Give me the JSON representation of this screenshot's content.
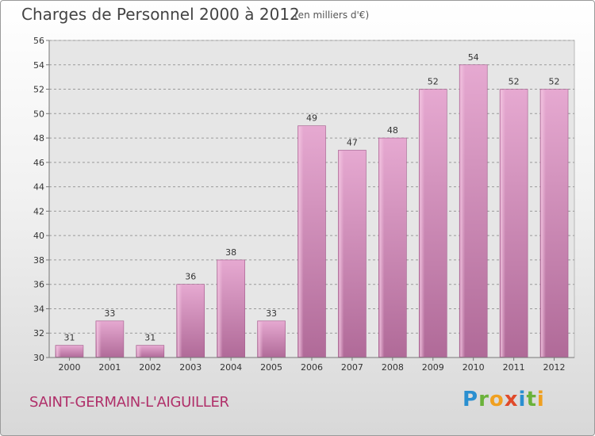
{
  "title": "Charges de Personnel 2000 à 2012",
  "subtitle": "(en milliers d'€)",
  "city": "SAINT-GERMAIN-L'AIGUILLER",
  "logo": "Proxiti",
  "logo_letters": [
    "P",
    "r",
    "o",
    "x",
    "i",
    "t",
    "i"
  ],
  "chart_data": {
    "type": "bar",
    "title": "Charges de Personnel 2000 à 2012",
    "subtitle": "(en milliers d'€)",
    "categories": [
      "2000",
      "2001",
      "2002",
      "2003",
      "2004",
      "2005",
      "2006",
      "2007",
      "2008",
      "2009",
      "2010",
      "2011",
      "2012"
    ],
    "values": [
      31,
      33,
      31,
      36,
      38,
      33,
      49,
      47,
      48,
      52,
      54,
      52,
      52
    ],
    "ylim": [
      30,
      56
    ],
    "yticks": [
      30,
      32,
      34,
      36,
      38,
      40,
      42,
      44,
      46,
      48,
      50,
      52,
      54,
      56
    ],
    "grid": true,
    "bar_color": "#d88ab8",
    "data_labels": true
  }
}
